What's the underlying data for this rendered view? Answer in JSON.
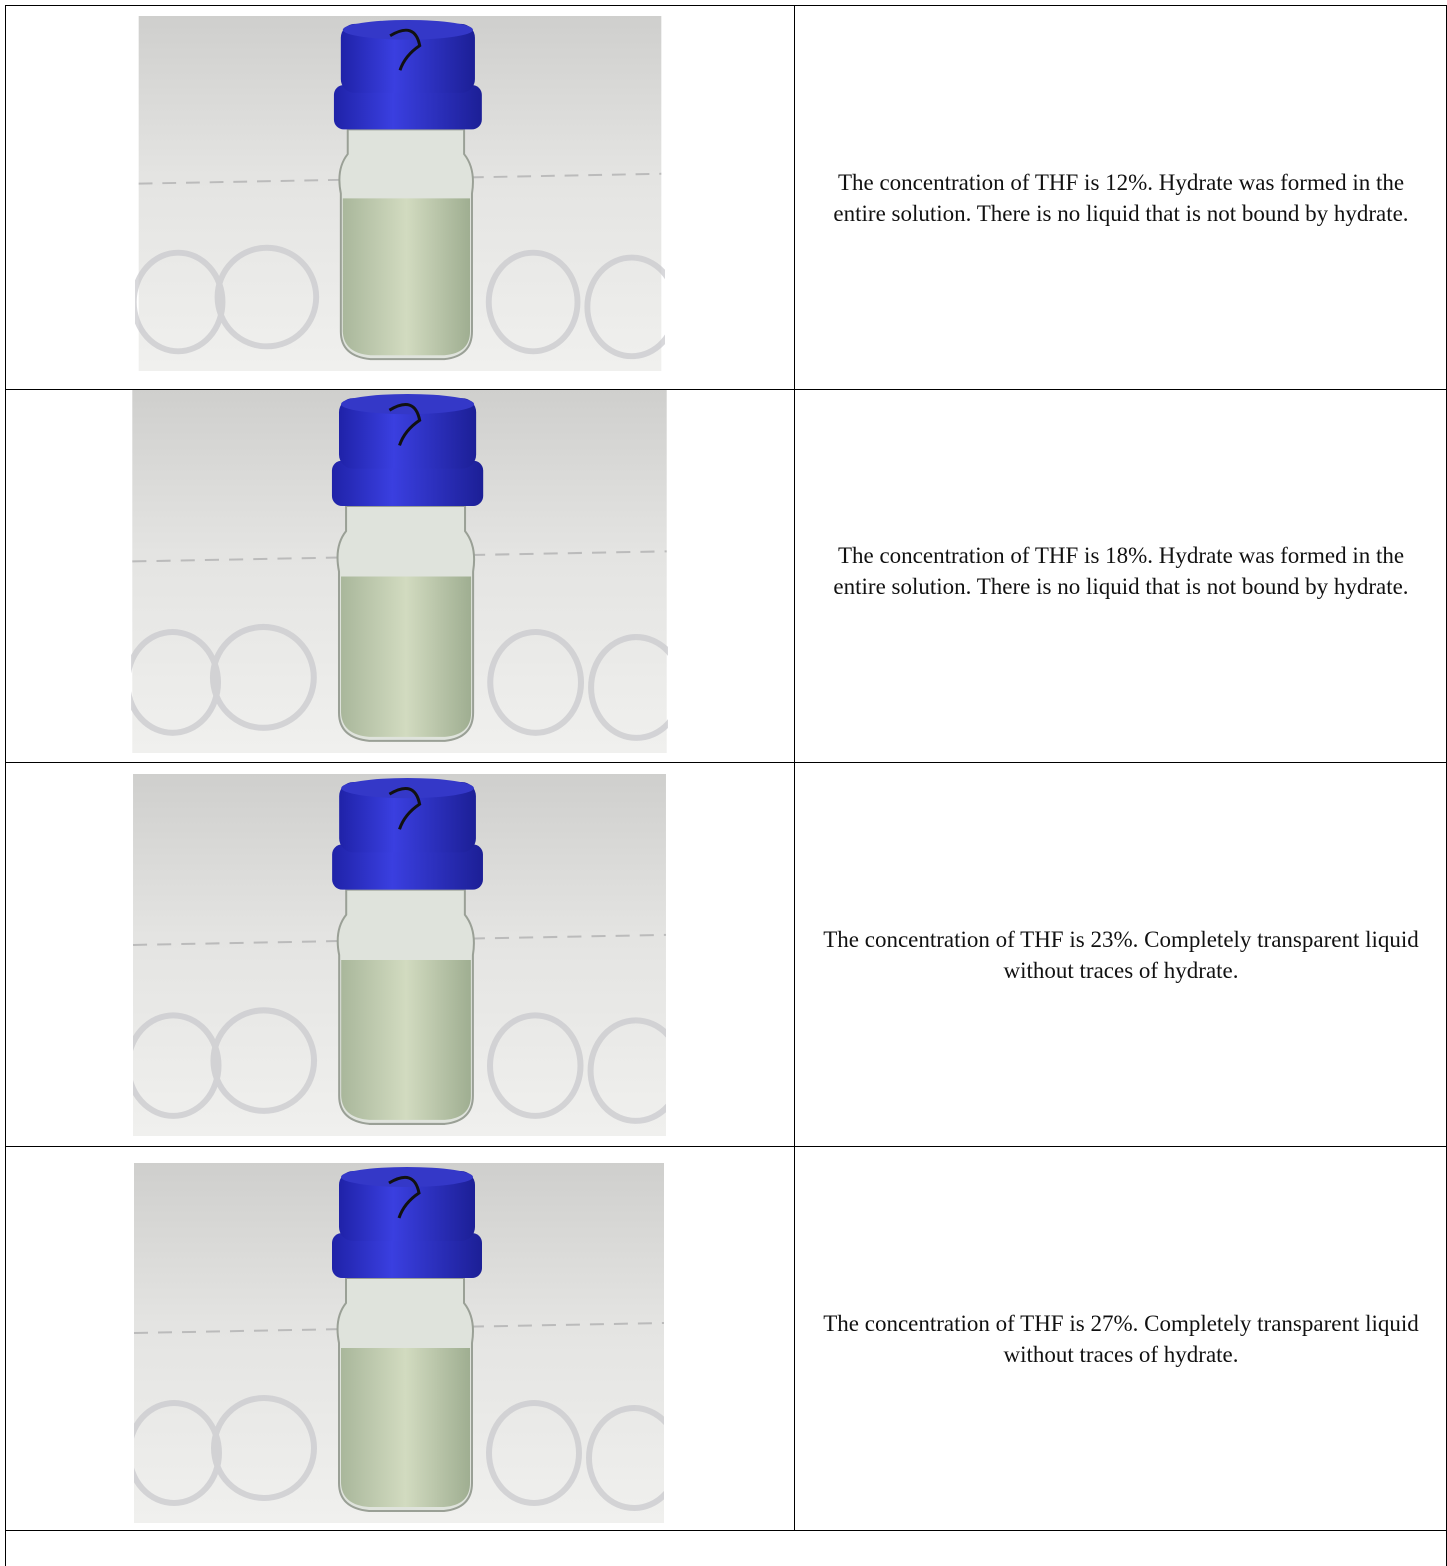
{
  "table": {
    "rows": [
      {
        "description": "The concentration of THF is 12%. Hydrate was formed in the entire solution. There is no liquid that is not bound by hydrate."
      },
      {
        "description": "The concentration of THF is 18%. Hydrate was formed in the entire solution. There is no liquid that is not bound by hydrate."
      },
      {
        "description": "The concentration of THF is 23%. Completely transparent liquid without traces of hydrate."
      },
      {
        "description": "The concentration of THF is 27%. Completely transparent liquid without traces of hydrate."
      }
    ]
  }
}
